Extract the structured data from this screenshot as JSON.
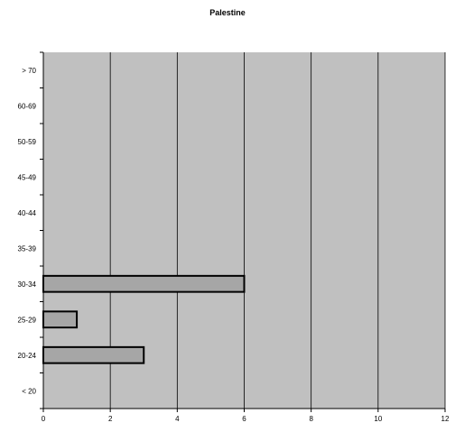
{
  "chart_data": {
    "type": "bar",
    "orientation": "horizontal",
    "title": "Palestine",
    "xlabel": "",
    "ylabel": "",
    "categories": [
      "< 20",
      "20-24",
      "25-29",
      "30-34",
      "35-39",
      "40-44",
      "45-49",
      "50-59",
      "60-69",
      "> 70"
    ],
    "values": [
      0,
      3,
      1,
      6,
      0,
      0,
      0,
      0,
      0,
      0
    ],
    "xlim": [
      0,
      12
    ],
    "xticks": [
      0,
      2,
      4,
      6,
      8,
      10,
      12
    ],
    "grid": "vertical",
    "legend": "none",
    "colors": {
      "plot_background": "#c0c0c0",
      "bar_fill": "#a6a6a6",
      "bar_stroke": "#000000",
      "gridline": "#000000"
    }
  }
}
